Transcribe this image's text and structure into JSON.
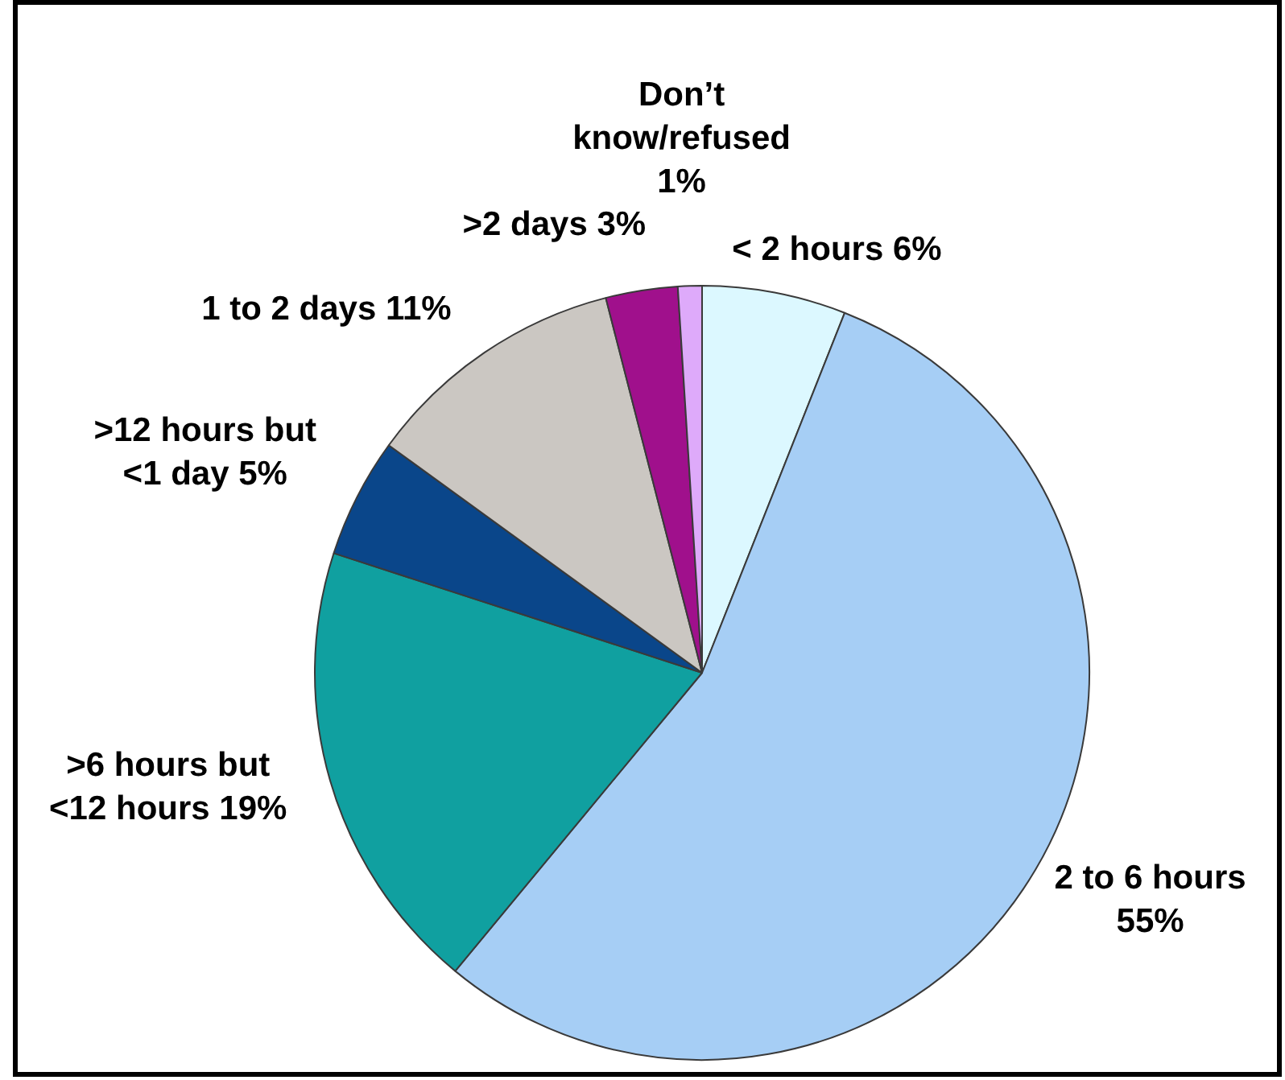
{
  "chart_data": {
    "type": "pie",
    "categories": [
      "< 2 hours",
      "2 to 6 hours",
      ">6 hours but <12 hours",
      ">12 hours but <1 day",
      "1 to 2 days",
      ">2 days",
      "Don’t know/refused"
    ],
    "values": [
      6,
      55,
      19,
      5,
      11,
      3,
      1
    ],
    "colors": [
      "#dcf8ff",
      "#a6cef5",
      "#10a0a0",
      "#0a468a",
      "#cbc7c2",
      "#a0108c",
      "#deaafa"
    ],
    "value_labels": [
      "6%",
      "55%",
      "19%",
      "5%",
      "11%",
      "3%",
      "1%"
    ],
    "legend": false
  }
}
